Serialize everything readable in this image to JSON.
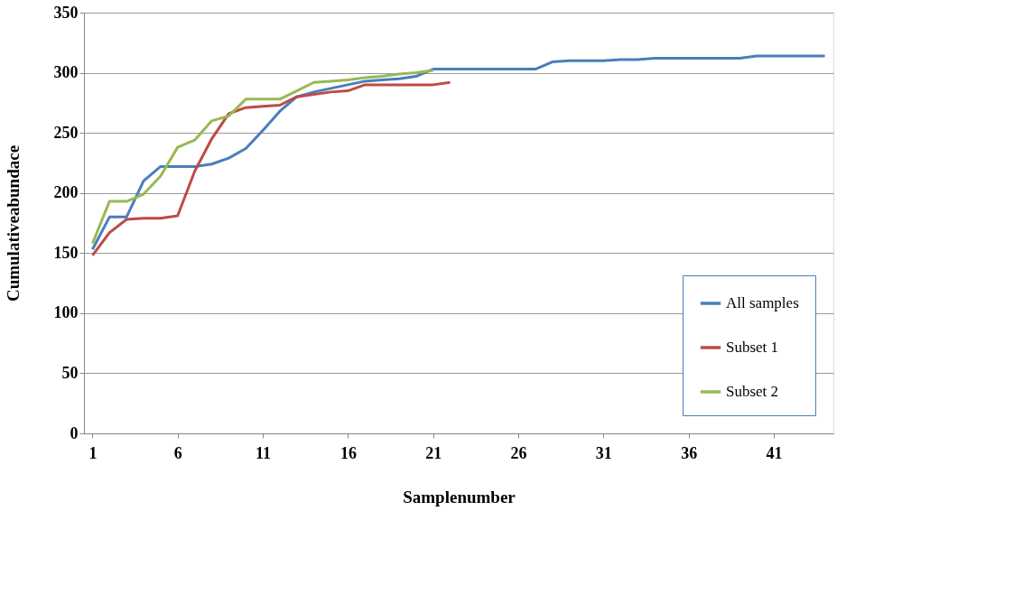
{
  "chart_data": {
    "type": "line",
    "xlabel": "Samplenumber",
    "ylabel": "Cumulativeabundace",
    "xlim": [
      0.5,
      44.5
    ],
    "xticks": [
      1,
      6,
      11,
      16,
      21,
      26,
      31,
      36,
      41
    ],
    "ylim": [
      0,
      350
    ],
    "yticks": [
      0,
      50,
      100,
      150,
      200,
      250,
      300,
      350
    ],
    "grid": "y",
    "legend": "bottom right",
    "marker": "none",
    "line_style": "solid",
    "series": [
      {
        "name": "All samples",
        "color": "#4a7ebb",
        "x": [
          1,
          2,
          3,
          4,
          5,
          6,
          7,
          8,
          9,
          10,
          11,
          12,
          13,
          14,
          15,
          16,
          17,
          18,
          19,
          20,
          21,
          22,
          23,
          24,
          25,
          26,
          27,
          28,
          29,
          30,
          31,
          32,
          33,
          34,
          35,
          36,
          37,
          38,
          39,
          40,
          41,
          42,
          43,
          44
        ],
        "values": [
          153,
          180,
          180,
          210,
          222,
          222,
          222,
          224,
          229,
          237,
          252,
          268,
          280,
          284,
          287,
          290,
          293,
          294,
          295,
          297,
          303,
          303,
          303,
          303,
          303,
          303,
          303,
          309,
          310,
          310,
          310,
          311,
          311,
          312,
          312,
          312,
          312,
          312,
          312,
          314,
          314,
          314,
          314,
          314
        ]
      },
      {
        "name": "Subset 1",
        "color": "#be4b48",
        "x": [
          1,
          2,
          3,
          4,
          5,
          6,
          7,
          8,
          9,
          10,
          11,
          12,
          13,
          14,
          15,
          16,
          17,
          18,
          19,
          20,
          21,
          22
        ],
        "values": [
          148,
          167,
          178,
          179,
          179,
          181,
          218,
          245,
          266,
          271,
          272,
          273,
          280,
          282,
          284,
          285,
          290,
          290,
          290,
          290,
          290,
          292
        ]
      },
      {
        "name": "Subset 2",
        "color": "#98b954",
        "x": [
          1,
          2,
          3,
          4,
          5,
          6,
          7,
          8,
          9,
          10,
          11,
          12,
          13,
          14,
          15,
          16,
          17,
          18,
          19,
          20,
          21
        ],
        "values": [
          158,
          193,
          193,
          199,
          214,
          238,
          244,
          260,
          264,
          278,
          278,
          278,
          285,
          292,
          293,
          294,
          296,
          297,
          299,
          300,
          302
        ]
      }
    ]
  }
}
